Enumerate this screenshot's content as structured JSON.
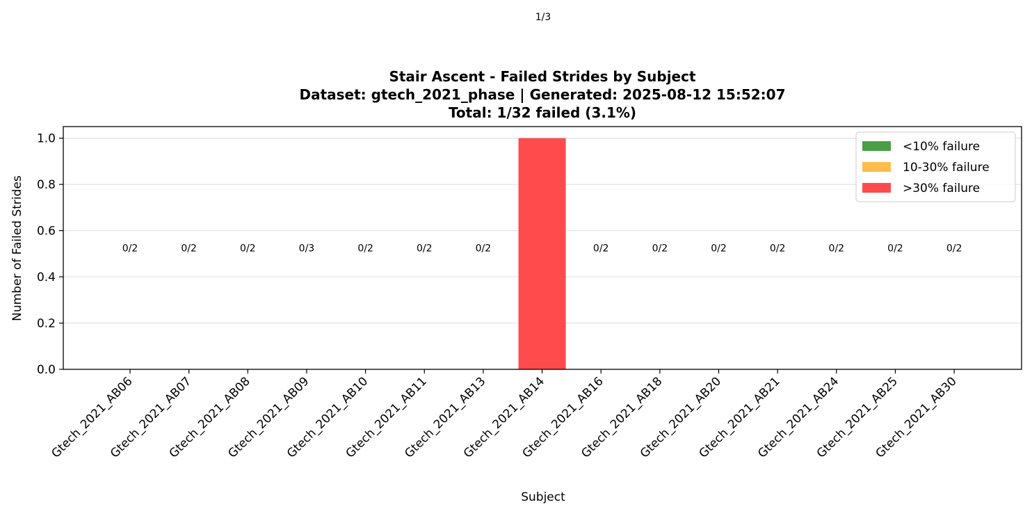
{
  "page": {
    "counter": "1/3"
  },
  "chart_data": {
    "type": "bar",
    "title_lines": [
      "Stair Ascent - Failed Strides by Subject",
      "Dataset: gtech_2021_phase | Generated: 2025-08-12 15:52:07",
      "Total: 1/32 failed (3.1%)"
    ],
    "xlabel": "Subject",
    "ylabel": "Number of Failed Strides",
    "ylim": [
      0,
      1.05
    ],
    "yticks": [
      0.0,
      0.2,
      0.4,
      0.6,
      0.8,
      1.0
    ],
    "ytick_labels": [
      "0.0",
      "0.2",
      "0.4",
      "0.6",
      "0.8",
      "1.0"
    ],
    "grid": "y-axis horizontal",
    "categories": [
      "Gtech_2021_AB06",
      "Gtech_2021_AB07",
      "Gtech_2021_AB08",
      "Gtech_2021_AB09",
      "Gtech_2021_AB10",
      "Gtech_2021_AB11",
      "Gtech_2021_AB13",
      "Gtech_2021_AB14",
      "Gtech_2021_AB16",
      "Gtech_2021_AB18",
      "Gtech_2021_AB20",
      "Gtech_2021_AB21",
      "Gtech_2021_AB24",
      "Gtech_2021_AB25",
      "Gtech_2021_AB30"
    ],
    "values": [
      0,
      0,
      0,
      0,
      0,
      0,
      0,
      1,
      0,
      0,
      0,
      0,
      0,
      0,
      0
    ],
    "bar_categories": [
      "low",
      "low",
      "low",
      "low",
      "low",
      "low",
      "low",
      "high",
      "low",
      "low",
      "low",
      "low",
      "low",
      "low",
      "low"
    ],
    "data_labels": [
      "0/2",
      "0/2",
      "0/2",
      "0/3",
      "0/2",
      "0/2",
      "0/2",
      "",
      "0/2",
      "0/2",
      "0/2",
      "0/2",
      "0/2",
      "0/2",
      "0/2"
    ],
    "legend": {
      "placement": "top-right",
      "entries": [
        {
          "key": "low",
          "label": "<10% failure",
          "color": "#4a9e46"
        },
        {
          "key": "mid",
          "label": "10-30% failure",
          "color": "#fdbc4b"
        },
        {
          "key": "high",
          "label": ">30% failure",
          "color": "#ff4b4b"
        }
      ]
    }
  }
}
